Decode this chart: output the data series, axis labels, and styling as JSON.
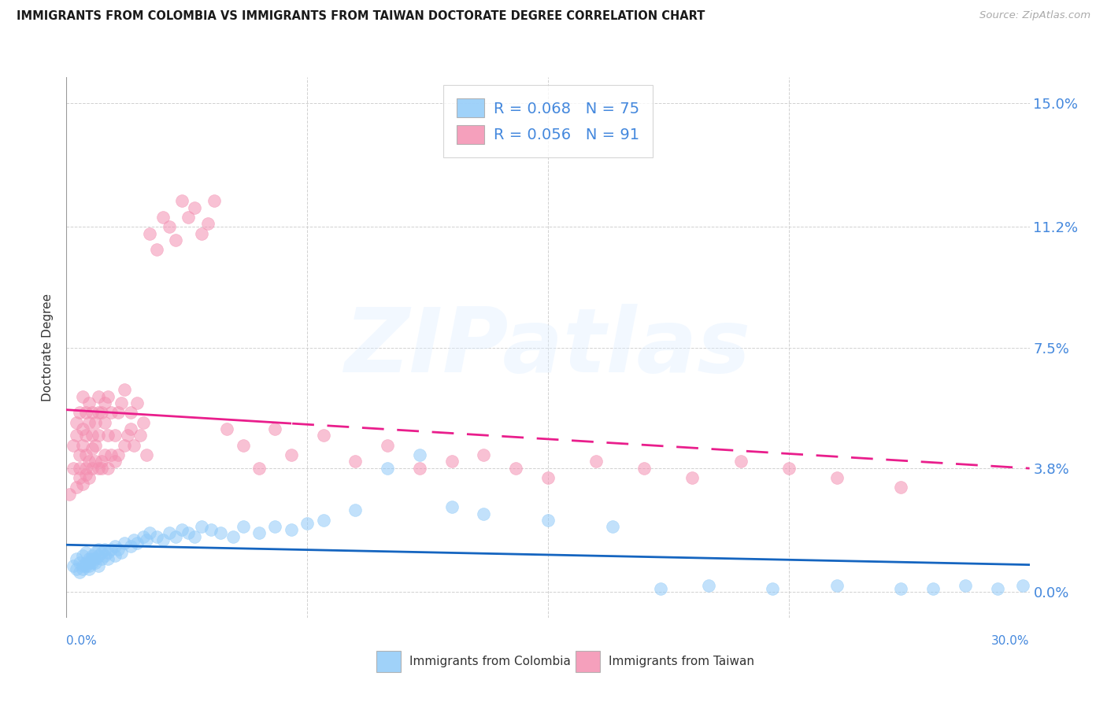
{
  "title": "IMMIGRANTS FROM COLOMBIA VS IMMIGRANTS FROM TAIWAN DOCTORATE DEGREE CORRELATION CHART",
  "source": "Source: ZipAtlas.com",
  "label_colombia": "Immigrants from Colombia",
  "label_taiwan": "Immigrants from Taiwan",
  "ylabel": "Doctorate Degree",
  "xlim": [
    0.0,
    0.3
  ],
  "ylim": [
    -0.008,
    0.158
  ],
  "ytick_values": [
    0.0,
    0.038,
    0.075,
    0.112,
    0.15
  ],
  "ytick_labels": [
    "0.0%",
    "3.8%",
    "7.5%",
    "11.2%",
    "15.0%"
  ],
  "xtick_values": [
    0.0,
    0.075,
    0.15,
    0.225,
    0.3
  ],
  "colombia_R": 0.068,
  "colombia_N": 75,
  "taiwan_R": 0.056,
  "taiwan_N": 91,
  "color_colombia": "#90CAF9",
  "color_taiwan": "#F48FB1",
  "color_trendline_colombia": "#1565C0",
  "color_trendline_taiwan": "#E91E8C",
  "color_labels": "#4488DD",
  "color_dark": "#333333",
  "background": "#ffffff",
  "grid_color": "#cccccc",
  "watermark": "ZIPatlas"
}
